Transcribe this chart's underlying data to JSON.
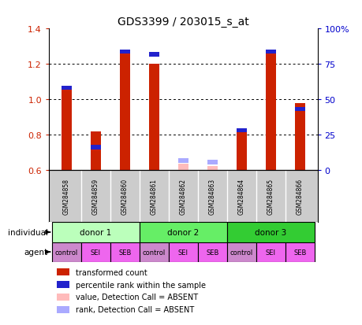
{
  "title": "GDS3399 / 203015_s_at",
  "samples": [
    "GSM284858",
    "GSM284859",
    "GSM284860",
    "GSM284861",
    "GSM284862",
    "GSM284863",
    "GSM284864",
    "GSM284865",
    "GSM284866"
  ],
  "red_values": [
    1.06,
    0.82,
    1.26,
    1.2,
    0.635,
    0.625,
    0.82,
    1.26,
    0.98
  ],
  "blue_values": [
    1.065,
    0.73,
    1.27,
    1.255,
    0.655,
    0.645,
    0.825,
    1.27,
    0.945
  ],
  "absent": [
    false,
    false,
    false,
    false,
    true,
    true,
    false,
    false,
    false
  ],
  "ylim_left": [
    0.6,
    1.4
  ],
  "ylim_right": [
    0,
    100
  ],
  "yticks_left": [
    0.6,
    0.8,
    1.0,
    1.2,
    1.4
  ],
  "yticks_right": [
    0,
    25,
    50,
    75,
    100
  ],
  "ytick_labels_right": [
    "0",
    "25",
    "50",
    "75",
    "100%"
  ],
  "donors": [
    {
      "label": "donor 1",
      "start": 0,
      "end": 3,
      "color": "#bbffbb"
    },
    {
      "label": "donor 2",
      "start": 3,
      "end": 6,
      "color": "#66ee66"
    },
    {
      "label": "donor 3",
      "start": 6,
      "end": 9,
      "color": "#33cc33"
    }
  ],
  "agents": [
    "control",
    "SEI",
    "SEB",
    "control",
    "SEI",
    "SEB",
    "control",
    "SEI",
    "SEB"
  ],
  "agent_pink": "#ee66ee",
  "control_mauve": "#cc88cc",
  "bar_color_present": "#cc2200",
  "bar_color_absent": "#ffbbbb",
  "blue_color_present": "#2222cc",
  "blue_color_absent": "#aaaaff",
  "background_color": "#ffffff",
  "left_axis_color": "#cc2200",
  "right_axis_color": "#0000cc",
  "sample_bg": "#cccccc",
  "plot_bg": "#ffffff",
  "individual_label": "individual",
  "agent_label": "agent",
  "legend_items": [
    {
      "color": "#cc2200",
      "text": "transformed count"
    },
    {
      "color": "#2222cc",
      "text": "percentile rank within the sample"
    },
    {
      "color": "#ffbbbb",
      "text": "value, Detection Call = ABSENT"
    },
    {
      "color": "#aaaaff",
      "text": "rank, Detection Call = ABSENT"
    }
  ]
}
